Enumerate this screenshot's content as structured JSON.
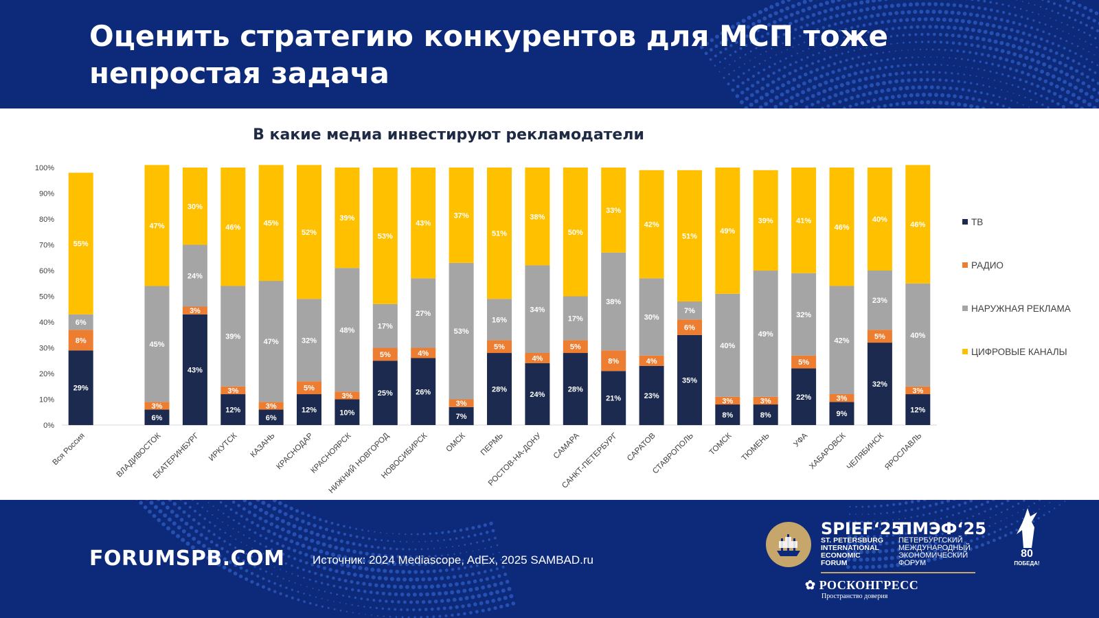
{
  "header": {
    "title": "Оценить стратегию конкурентов для МСП тоже непростая задача"
  },
  "footer": {
    "site": "FORUMSPB.COM",
    "source": "Источник:  2024 Mediascope, AdEx, 2025 SAMBAD.ru",
    "spief_en_big": "SPIEF‘25",
    "spief_en_lines": [
      "ST. PETERSBURG",
      "INTERNATIONAL",
      "ECONOMIC",
      "FORUM"
    ],
    "spief_ru_big": "ПМЭФ‘25",
    "spief_ru_lines": [
      "ПЕТЕРБУРГСКИЙ",
      "МЕЖДУНАРОДНЫЙ",
      "ЭКОНОМИЧЕСКИЙ",
      "ФОРУМ"
    ],
    "roscongress": "РОСКОНГРЕСС",
    "roscongress_tag": "Пространство доверия",
    "victory_number": "80",
    "victory_word": "ПОБЕДА!"
  },
  "colors": {
    "bg_blue": "#0d2a7a",
    "tv": "#1b2a4e",
    "radio": "#ed7d31",
    "outdoor": "#a5a5a5",
    "digital": "#ffc000"
  },
  "chart_data": {
    "type": "bar",
    "stacked": true,
    "title": "В какие медиа инвестируют рекламодатели",
    "categories": [
      "Вся Россия",
      "",
      "ВЛАДИВОСТОК",
      "ЕКАТЕРИНБУРГ",
      "ИРКУТСК",
      "КАЗАНЬ",
      "КРАСНОДАР",
      "КРАСНОЯРСК",
      "НИЖНИЙ НОВГОРОД",
      "НОВОСИБИРСК",
      "ОМСК",
      "ПЕРМЬ",
      "РОСТОВ-НА-ДОНУ",
      "САМАРА",
      "САНКТ-ПЕТЕРБУРГ",
      "САРАТОВ",
      "СТАВРОПОЛЬ",
      "ТОМСК",
      "ТЮМЕНЬ",
      "УФА",
      "ХАБАРОВСК",
      "ЧЕЛЯБИНСК",
      "ЯРОСЛАВЛЬ"
    ],
    "series": [
      {
        "name": "ТВ",
        "color": "#1b2a4e",
        "values": [
          29,
          null,
          6,
          43,
          12,
          6,
          12,
          10,
          25,
          26,
          7,
          28,
          24,
          28,
          21,
          23,
          35,
          8,
          8,
          22,
          9,
          32,
          12
        ]
      },
      {
        "name": "РАДИО",
        "color": "#ed7d31",
        "values": [
          8,
          null,
          3,
          3,
          3,
          3,
          5,
          3,
          5,
          4,
          3,
          5,
          4,
          5,
          8,
          4,
          6,
          3,
          3,
          5,
          3,
          5,
          3
        ]
      },
      {
        "name": "НАРУЖНАЯ РЕКЛАМА",
        "color": "#a5a5a5",
        "values": [
          6,
          null,
          45,
          24,
          39,
          47,
          32,
          48,
          17,
          27,
          53,
          16,
          34,
          17,
          38,
          30,
          7,
          40,
          49,
          32,
          42,
          23,
          40
        ]
      },
      {
        "name": "ЦИФРОВЫЕ КАНАЛЫ",
        "color": "#ffc000",
        "values": [
          55,
          null,
          47,
          30,
          46,
          45,
          52,
          39,
          53,
          43,
          37,
          51,
          38,
          50,
          33,
          42,
          51,
          49,
          39,
          41,
          46,
          40,
          46
        ]
      }
    ],
    "y_ticks": [
      "0%",
      "10%",
      "20%",
      "30%",
      "40%",
      "50%",
      "60%",
      "70%",
      "80%",
      "90%",
      "100%"
    ],
    "ylim": [
      0,
      100
    ],
    "legend_position": "right",
    "grid": false
  }
}
